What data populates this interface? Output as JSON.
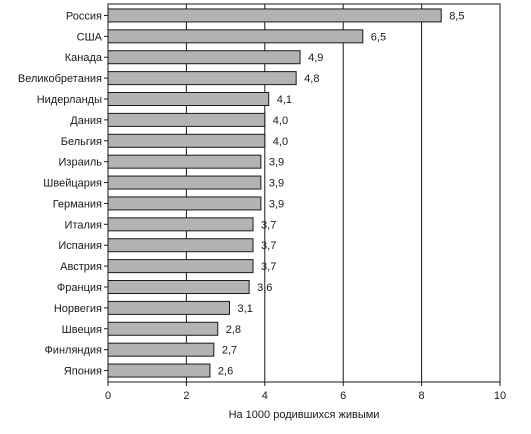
{
  "chart_data": {
    "type": "bar",
    "orientation": "horizontal",
    "categories": [
      "Россия",
      "США",
      "Канада",
      "Великобретания",
      "Нидерланды",
      "Дания",
      "Бельгия",
      "Израиль",
      "Швейцария",
      "Германия",
      "Италия",
      "Испания",
      "Австрия",
      "Франция",
      "Норвегия",
      "Швеция",
      "Финляндия",
      "Япония"
    ],
    "values": [
      8.5,
      6.5,
      4.9,
      4.8,
      4.1,
      4.0,
      4.0,
      3.9,
      3.9,
      3.9,
      3.7,
      3.7,
      3.7,
      3.6,
      3.1,
      2.8,
      2.7,
      2.6
    ],
    "value_labels": [
      "8,5",
      "6,5",
      "4,9",
      "4,8",
      "4,1",
      "4,0",
      "4,0",
      "3,9",
      "3,9",
      "3,9",
      "3,7",
      "3,7",
      "3,7",
      "3,6",
      "3,1",
      "2,8",
      "2,7",
      "2,6"
    ],
    "title": "",
    "xlabel": "На 1000 родившихся живыми",
    "ylabel": "",
    "xlim": [
      0,
      10
    ],
    "xticks": [
      "0",
      "2",
      "4",
      "6",
      "8",
      "10"
    ],
    "grid": "vertical",
    "legend": "none",
    "colors": {
      "bar_fill": "#b3b3b3",
      "bar_stroke": "#1a1a1a",
      "axis": "#1a1a1a",
      "grid": "#1a1a1a"
    }
  }
}
